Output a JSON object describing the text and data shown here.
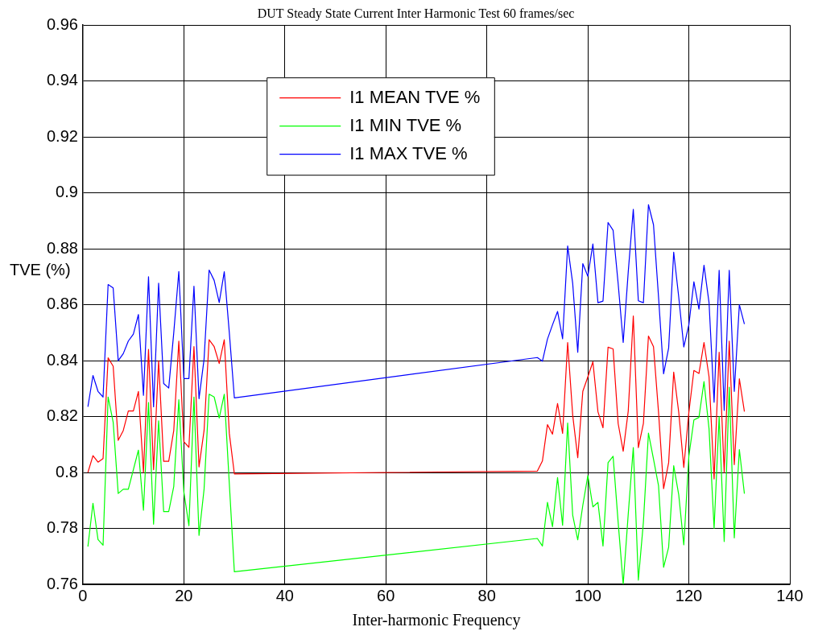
{
  "chart_data": {
    "type": "line",
    "title": "DUT Steady State Current Inter Harmonic Test 60 frames/sec",
    "xlabel": "Inter-harmonic Frequency",
    "ylabel": "TVE (%)",
    "x": [
      1,
      2,
      3,
      4,
      5,
      6,
      7,
      8,
      9,
      10,
      11,
      12,
      13,
      14,
      15,
      16,
      17,
      18,
      19,
      20,
      21,
      22,
      23,
      24,
      25,
      26,
      27,
      28,
      29,
      30,
      90,
      91,
      92,
      93,
      94,
      95,
      96,
      97,
      98,
      99,
      100,
      101,
      102,
      103,
      104,
      105,
      106,
      107,
      108,
      109,
      110,
      111,
      112,
      113,
      114,
      115,
      116,
      117,
      118,
      119,
      120,
      121,
      122,
      123,
      124,
      125,
      126,
      127,
      128,
      129,
      130,
      131
    ],
    "series": [
      {
        "name": "I1 MEAN TVE %",
        "color": "#ff0000",
        "values": [
          0.8,
          0.806,
          0.8037,
          0.805,
          0.841,
          0.838,
          0.8115,
          0.815,
          0.822,
          0.822,
          0.829,
          0.8,
          0.844,
          0.801,
          0.84,
          0.804,
          0.804,
          0.815,
          0.847,
          0.811,
          0.809,
          0.845,
          0.802,
          0.815,
          0.8475,
          0.845,
          0.839,
          0.8475,
          0.814,
          0.7995,
          0.8005,
          0.8041,
          0.8171,
          0.8137,
          0.8247,
          0.814,
          0.8465,
          0.8205,
          0.8053,
          0.829,
          0.8342,
          0.8396,
          0.8217,
          0.816,
          0.8448,
          0.8442,
          0.8175,
          0.8076,
          0.822,
          0.856,
          0.8089,
          0.8175,
          0.8488,
          0.845,
          0.8215,
          0.7942,
          0.8035,
          0.8359,
          0.8215,
          0.8018,
          0.8215,
          0.8365,
          0.8354,
          0.8465,
          0.8342,
          0.7977,
          0.843,
          0.8,
          0.847,
          0.8028,
          0.8335,
          0.8218
        ]
      },
      {
        "name": "I1 MIN TVE %",
        "color": "#00ff00",
        "values": [
          0.7735,
          0.789,
          0.776,
          0.774,
          0.827,
          0.818,
          0.7925,
          0.794,
          0.794,
          0.801,
          0.808,
          0.7865,
          0.825,
          0.7815,
          0.8185,
          0.786,
          0.786,
          0.795,
          0.826,
          0.793,
          0.781,
          0.827,
          0.7775,
          0.794,
          0.828,
          0.827,
          0.8195,
          0.828,
          0.796,
          0.7645,
          0.7764,
          0.7737,
          0.7893,
          0.7806,
          0.7982,
          0.7811,
          0.8177,
          0.7847,
          0.7759,
          0.7882,
          0.7989,
          0.7877,
          0.7893,
          0.7737,
          0.8035,
          0.8058,
          0.7822,
          0.76,
          0.7852,
          0.8089,
          0.7615,
          0.7822,
          0.8141,
          0.8048,
          0.7952,
          0.7661,
          0.7733,
          0.8024,
          0.792,
          0.7741,
          0.8058,
          0.8188,
          0.8197,
          0.8325,
          0.8156,
          0.78,
          0.82,
          0.7753,
          0.8305,
          0.7766,
          0.8082,
          0.7924
        ]
      },
      {
        "name": "I1 MAX TVE %",
        "color": "#0000ff",
        "values": [
          0.8235,
          0.8347,
          0.829,
          0.827,
          0.8672,
          0.866,
          0.84,
          0.8425,
          0.847,
          0.8495,
          0.8565,
          0.8276,
          0.87,
          0.8235,
          0.8677,
          0.8318,
          0.8302,
          0.85,
          0.8719,
          0.8336,
          0.8336,
          0.8666,
          0.8264,
          0.8405,
          0.8724,
          0.8687,
          0.8608,
          0.8718,
          0.85,
          0.8267,
          0.8411,
          0.8398,
          0.8477,
          0.8528,
          0.8576,
          0.8478,
          0.881,
          0.8676,
          0.843,
          0.8747,
          0.8702,
          0.8817,
          0.8607,
          0.8613,
          0.8894,
          0.8866,
          0.8676,
          0.8465,
          0.8718,
          0.8941,
          0.8614,
          0.8607,
          0.8958,
          0.8886,
          0.8627,
          0.8353,
          0.8445,
          0.8788,
          0.8627,
          0.8449,
          0.8528,
          0.8682,
          0.8584,
          0.8741,
          0.8607,
          0.8251,
          0.8723,
          0.8222,
          0.8723,
          0.829,
          0.86,
          0.8531
        ]
      }
    ],
    "xlim": [
      0,
      140
    ],
    "xticks": [
      0,
      20,
      40,
      60,
      80,
      100,
      120,
      140
    ],
    "ylim": [
      0.76,
      0.96
    ],
    "yticks": [
      0.76,
      0.78,
      0.8,
      0.82,
      0.84,
      0.86,
      0.88,
      0.9,
      0.92,
      0.94,
      0.96
    ],
    "grid": true,
    "legend": "top",
    "marker": "none",
    "line_style": "solid"
  }
}
